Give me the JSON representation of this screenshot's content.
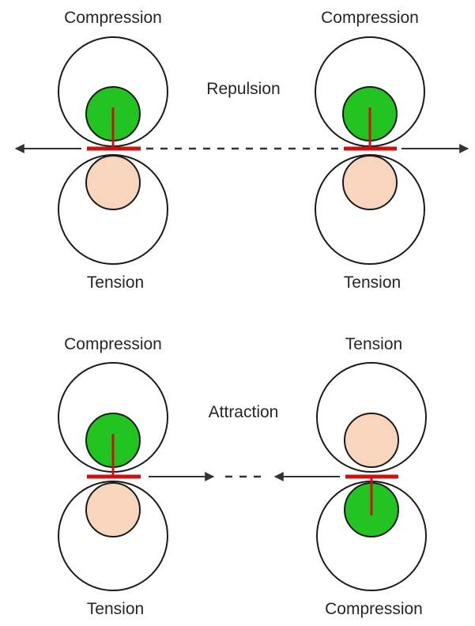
{
  "top": {
    "left_upper_label": "Compression",
    "right_upper_label": "Compression",
    "center_label": "Repulsion",
    "left_lower_label": "Tension",
    "right_lower_label": "Tension"
  },
  "bottom": {
    "left_upper_label": "Compression",
    "right_upper_label": "Tension",
    "center_label": "Attraction",
    "left_lower_label": "Tension",
    "right_lower_label": "Compression"
  },
  "colors": {
    "compression_fill": "#22c422",
    "tension_fill": "#f7d6bd",
    "stroke": "#1a1a1a",
    "red_marker": "#cc1111",
    "arrow": "#333333"
  }
}
